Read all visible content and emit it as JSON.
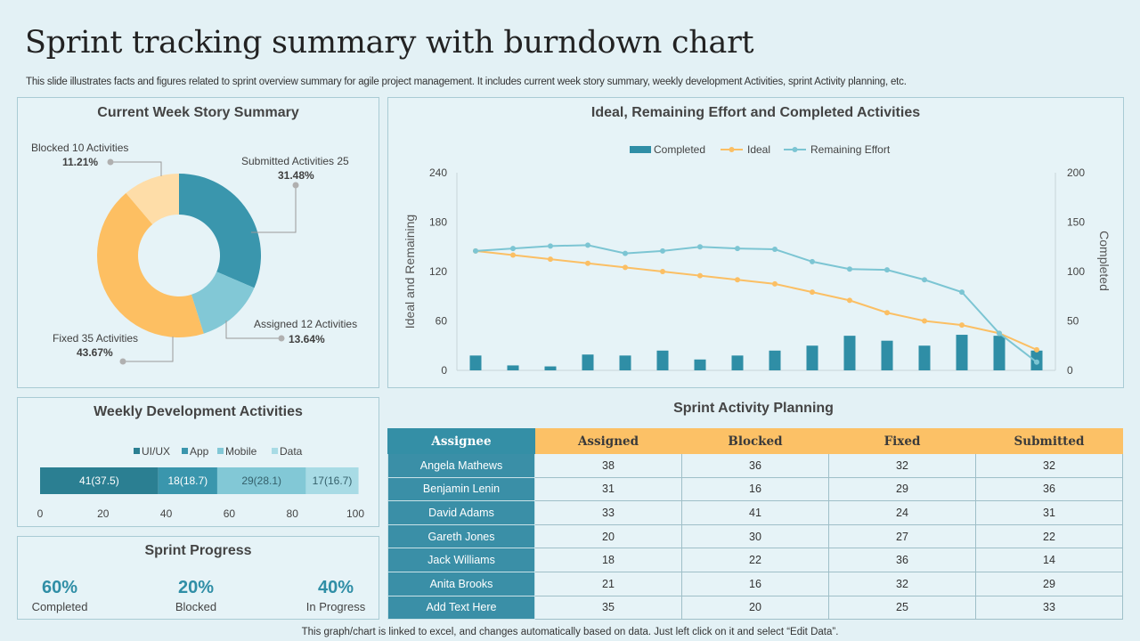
{
  "header": {
    "title": "Sprint tracking summary with burndown chart",
    "subtitle": "This slide illustrates facts and figures related to sprint overview summary for agile project management. It includes current week story summary, weekly development Activities, sprint Activity  planning, etc.",
    "footer": "This graph/chart is linked to excel,  and changes automatically based on data. Just left click on it and select “Edit Data”."
  },
  "colors": {
    "teal_dark": "#2b7f92",
    "teal": "#3a96ad",
    "teal_light": "#82c8d6",
    "teal_pale": "#a8dbe5",
    "orange": "#fdbf62",
    "peach": "#fedda8",
    "bar": "#2f8ea6",
    "ideal": "#fbbf64",
    "remaining": "#7cc5d3"
  },
  "story_summary": {
    "title": "Current Week Story Summary",
    "callouts": [
      {
        "label": "Blocked 10 Activities",
        "pct": "11.21%"
      },
      {
        "label": "Submitted Activities 25",
        "pct": "31.48%"
      },
      {
        "label": "Assigned 12 Activities",
        "pct": "13.64%"
      },
      {
        "label": "Fixed 35 Activities",
        "pct": "43.67%"
      }
    ]
  },
  "weekly_dev": {
    "title": "Weekly Development Activities",
    "legend": [
      "UI/UX",
      "App",
      "Mobile",
      "Data"
    ],
    "segment_labels": [
      "41(37.5)",
      "18(18.7)",
      "29(28.1)",
      "17(16.7)"
    ]
  },
  "progress": {
    "title": "Sprint Progress",
    "items": [
      {
        "value": "60%",
        "label": "Completed"
      },
      {
        "value": "20%",
        "label": "Blocked"
      },
      {
        "value": "40%",
        "label": "In Progress"
      }
    ]
  },
  "burndown": {
    "title": "Ideal, Remaining Effort and Completed Activities",
    "legend": [
      "Completed",
      "Ideal",
      "Remaining Effort"
    ],
    "ylabel_left": "Ideal and Remaining",
    "ylabel_right": "Completed",
    "left_ticks": [
      "240",
      "180",
      "120",
      "60",
      "0"
    ],
    "right_ticks": [
      "200",
      "150",
      "100",
      "50",
      "0"
    ]
  },
  "planning": {
    "title": "Sprint Activity Planning",
    "columns": [
      "Assignee",
      "Assigned",
      "Blocked",
      "Fixed",
      "Submitted"
    ],
    "rows": [
      [
        "Angela Mathews",
        "38",
        "36",
        "32",
        "32"
      ],
      [
        "Benjamin Lenin",
        "31",
        "16",
        "29",
        "36"
      ],
      [
        "David  Adams",
        "33",
        "41",
        "24",
        "31"
      ],
      [
        "Gareth Jones",
        "20",
        "30",
        "27",
        "22"
      ],
      [
        "Jack Williams",
        "18",
        "22",
        "36",
        "14"
      ],
      [
        "Anita Brooks",
        "21",
        "16",
        "32",
        "29"
      ],
      [
        "Add Text Here",
        "35",
        "20",
        "25",
        "33"
      ]
    ]
  },
  "chart_data": [
    {
      "type": "pie",
      "title": "Current Week Story Summary",
      "categories": [
        "Submitted",
        "Assigned",
        "Fixed",
        "Blocked"
      ],
      "values": [
        31.48,
        13.64,
        43.67,
        11.21
      ],
      "counts": [
        25,
        12,
        35,
        10
      ]
    },
    {
      "type": "bar",
      "orientation": "horizontal-stacked",
      "title": "Weekly Development Activities",
      "series": [
        {
          "name": "UI/UX",
          "values": [
            37.5
          ]
        },
        {
          "name": "App",
          "values": [
            18.7
          ]
        },
        {
          "name": "Mobile",
          "values": [
            28.1
          ]
        },
        {
          "name": "Data",
          "values": [
            16.7
          ]
        }
      ],
      "xlim": [
        0,
        100
      ],
      "xticks": [
        "0",
        "20",
        "40",
        "60",
        "80",
        "100"
      ]
    },
    {
      "type": "line",
      "title": "Ideal, Remaining Effort and Completed Activities",
      "x": [
        1,
        2,
        3,
        4,
        5,
        6,
        7,
        8,
        9,
        10,
        11,
        12,
        13,
        14,
        15,
        16
      ],
      "series": [
        {
          "name": "Completed",
          "kind": "bar",
          "axis": "right",
          "values": [
            15,
            5,
            4,
            16,
            15,
            20,
            11,
            15,
            20,
            25,
            35,
            30,
            25,
            36,
            35,
            20
          ]
        },
        {
          "name": "Ideal",
          "kind": "line",
          "axis": "left",
          "values": [
            145,
            140,
            135,
            130,
            125,
            120,
            115,
            110,
            105,
            95,
            85,
            70,
            60,
            55,
            45,
            25
          ]
        },
        {
          "name": "Remaining Effort",
          "kind": "line",
          "axis": "left",
          "values": [
            145,
            148,
            151,
            152,
            142,
            145,
            150,
            148,
            147,
            132,
            123,
            122,
            110,
            95,
            45,
            10
          ]
        }
      ],
      "ylim_left": [
        0,
        240
      ],
      "ylim_right": [
        0,
        200
      ],
      "ylabel": "Ideal and Remaining",
      "ylabel_right": "Completed"
    }
  ]
}
